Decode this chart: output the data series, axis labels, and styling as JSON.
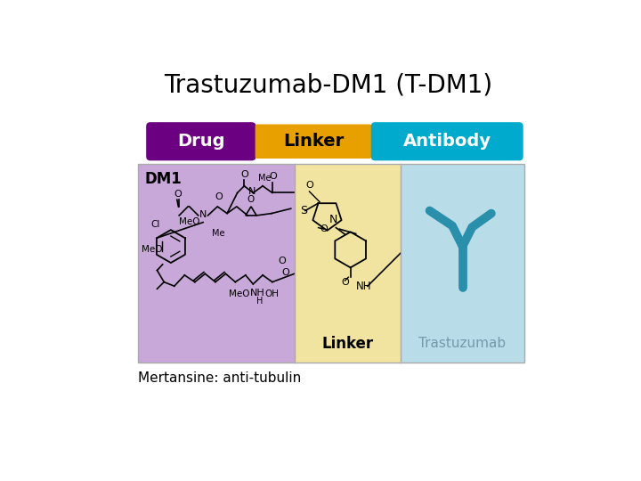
{
  "title": "Trastuzumab-DM1 (T-DM1)",
  "title_fontsize": 20,
  "bg_color": "#ffffff",
  "footer_text": "Mertansine: anti-tubulin",
  "footer_fontsize": 11,
  "drug_label": "Drug",
  "linker_label": "Linker",
  "antibody_label": "Antibody",
  "drug_color": "#6B0080",
  "linker_color": "#E8A000",
  "antibody_color": "#00AACC",
  "label_text_color_white": "#ffffff",
  "label_text_color_black": "#000000",
  "dm1_bg": "#C8A8D8",
  "linker_bg": "#F0E4A0",
  "antibody_bg": "#B8DDE8",
  "dm1_label": "DM1",
  "linker_bottom_label": "Linker",
  "trastuzumab_label": "Trastuzumab",
  "trastuzumab_label_color": "#7799AA",
  "antibody_icon_color": "#2A8FAA",
  "panel_border_color": "#AAAAAA"
}
